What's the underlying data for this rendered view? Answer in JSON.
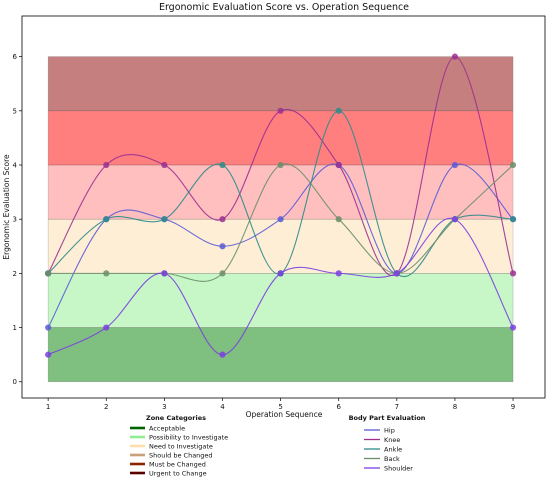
{
  "chart_data": {
    "type": "line",
    "title": "Ergonomic Evaluation Score vs. Operation Sequence",
    "xlabel": "Operation Sequence",
    "ylabel": "Ergonomic Evaluation Score",
    "x": [
      1,
      2,
      3,
      4,
      5,
      6,
      7,
      8,
      9
    ],
    "xlim": [
      0.55,
      9.55
    ],
    "ylim": [
      -0.3,
      6.75
    ],
    "xticks": [
      1,
      2,
      3,
      4,
      5,
      6,
      7,
      8,
      9
    ],
    "yticks": [
      0,
      1,
      2,
      3,
      4,
      5,
      6
    ],
    "grid": false,
    "zones": [
      {
        "name": "Acceptable",
        "from": 0,
        "to": 1,
        "color": "#008000",
        "opacity": 0.5,
        "legend_color": "#006400"
      },
      {
        "name": "Possibility to Investigate",
        "from": 1,
        "to": 2,
        "color": "#90ee90",
        "opacity": 0.5,
        "legend_color": "#90ee90"
      },
      {
        "name": "Need to Investigate",
        "from": 2,
        "to": 3,
        "color": "#ffdead",
        "opacity": 0.5,
        "legend_color": "#ffdead"
      },
      {
        "name": "Should be Changed",
        "from": 3,
        "to": 4,
        "color": "#ff7f7f",
        "opacity": 0.5,
        "legend_color": "#c8a07a"
      },
      {
        "name": "Must be Changed",
        "from": 4,
        "to": 5,
        "color": "#ff0000",
        "opacity": 0.5,
        "legend_color": "#8b2500"
      },
      {
        "name": "Urgent to Change",
        "from": 5,
        "to": 6,
        "color": "#8b0000",
        "opacity": 0.5,
        "legend_color": "#5a0000"
      }
    ],
    "zone_legend_title": "Zone Categories",
    "series_legend_title": "Body Part Evaluation",
    "series": [
      {
        "name": "Hip",
        "color": "#5b5bd6",
        "values": [
          1,
          3,
          3,
          2.5,
          3,
          4,
          2,
          4,
          3
        ]
      },
      {
        "name": "Knee",
        "color": "#9b3090",
        "values": [
          2,
          4,
          4,
          3,
          5,
          4,
          2,
          6,
          2
        ]
      },
      {
        "name": "Ankle",
        "color": "#2e8b8b",
        "values": [
          2,
          3,
          3,
          4,
          2,
          5,
          2,
          3,
          3
        ]
      },
      {
        "name": "Back",
        "color": "#6b8e6b",
        "values": [
          2,
          2,
          2,
          2,
          4,
          3,
          2,
          3,
          4
        ]
      },
      {
        "name": "Shoulder",
        "color": "#7b3fe0",
        "values": [
          0.5,
          1,
          2,
          0.5,
          2,
          2,
          2,
          3,
          1
        ]
      }
    ]
  }
}
